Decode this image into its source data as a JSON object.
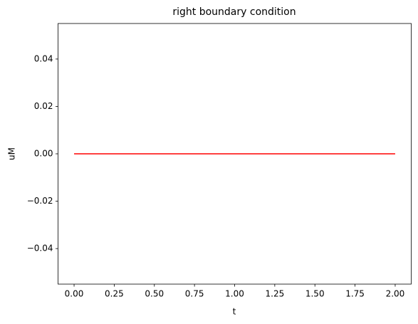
{
  "chart_data": {
    "type": "line",
    "title": "right boundary condition",
    "x_label": "t",
    "y_label": "uM",
    "x": [
      0,
      2
    ],
    "series": [
      {
        "color": "#ff0000",
        "values": [
          0,
          0
        ]
      }
    ],
    "xlim": [
      -0.1,
      2.1
    ],
    "ylim": [
      -0.055,
      0.055
    ],
    "xticks": [
      {
        "value": 0,
        "label": "0.00"
      },
      {
        "value": 0.25,
        "label": "0.25"
      },
      {
        "value": 0.5,
        "label": "0.50"
      },
      {
        "value": 0.75,
        "label": "0.75"
      },
      {
        "value": 1,
        "label": "1.00"
      },
      {
        "value": 1.25,
        "label": "1.25"
      },
      {
        "value": 1.5,
        "label": "1.50"
      },
      {
        "value": 1.75,
        "label": "1.75"
      },
      {
        "value": 2,
        "label": "2.00"
      }
    ],
    "yticks": [
      {
        "value": -0.04,
        "label": "−0.04"
      },
      {
        "value": -0.02,
        "label": "−0.02"
      },
      {
        "value": 0,
        "label": "0.00"
      },
      {
        "value": 0.02,
        "label": "0.02"
      },
      {
        "value": 0.04,
        "label": "0.04"
      }
    ],
    "grid": false
  }
}
